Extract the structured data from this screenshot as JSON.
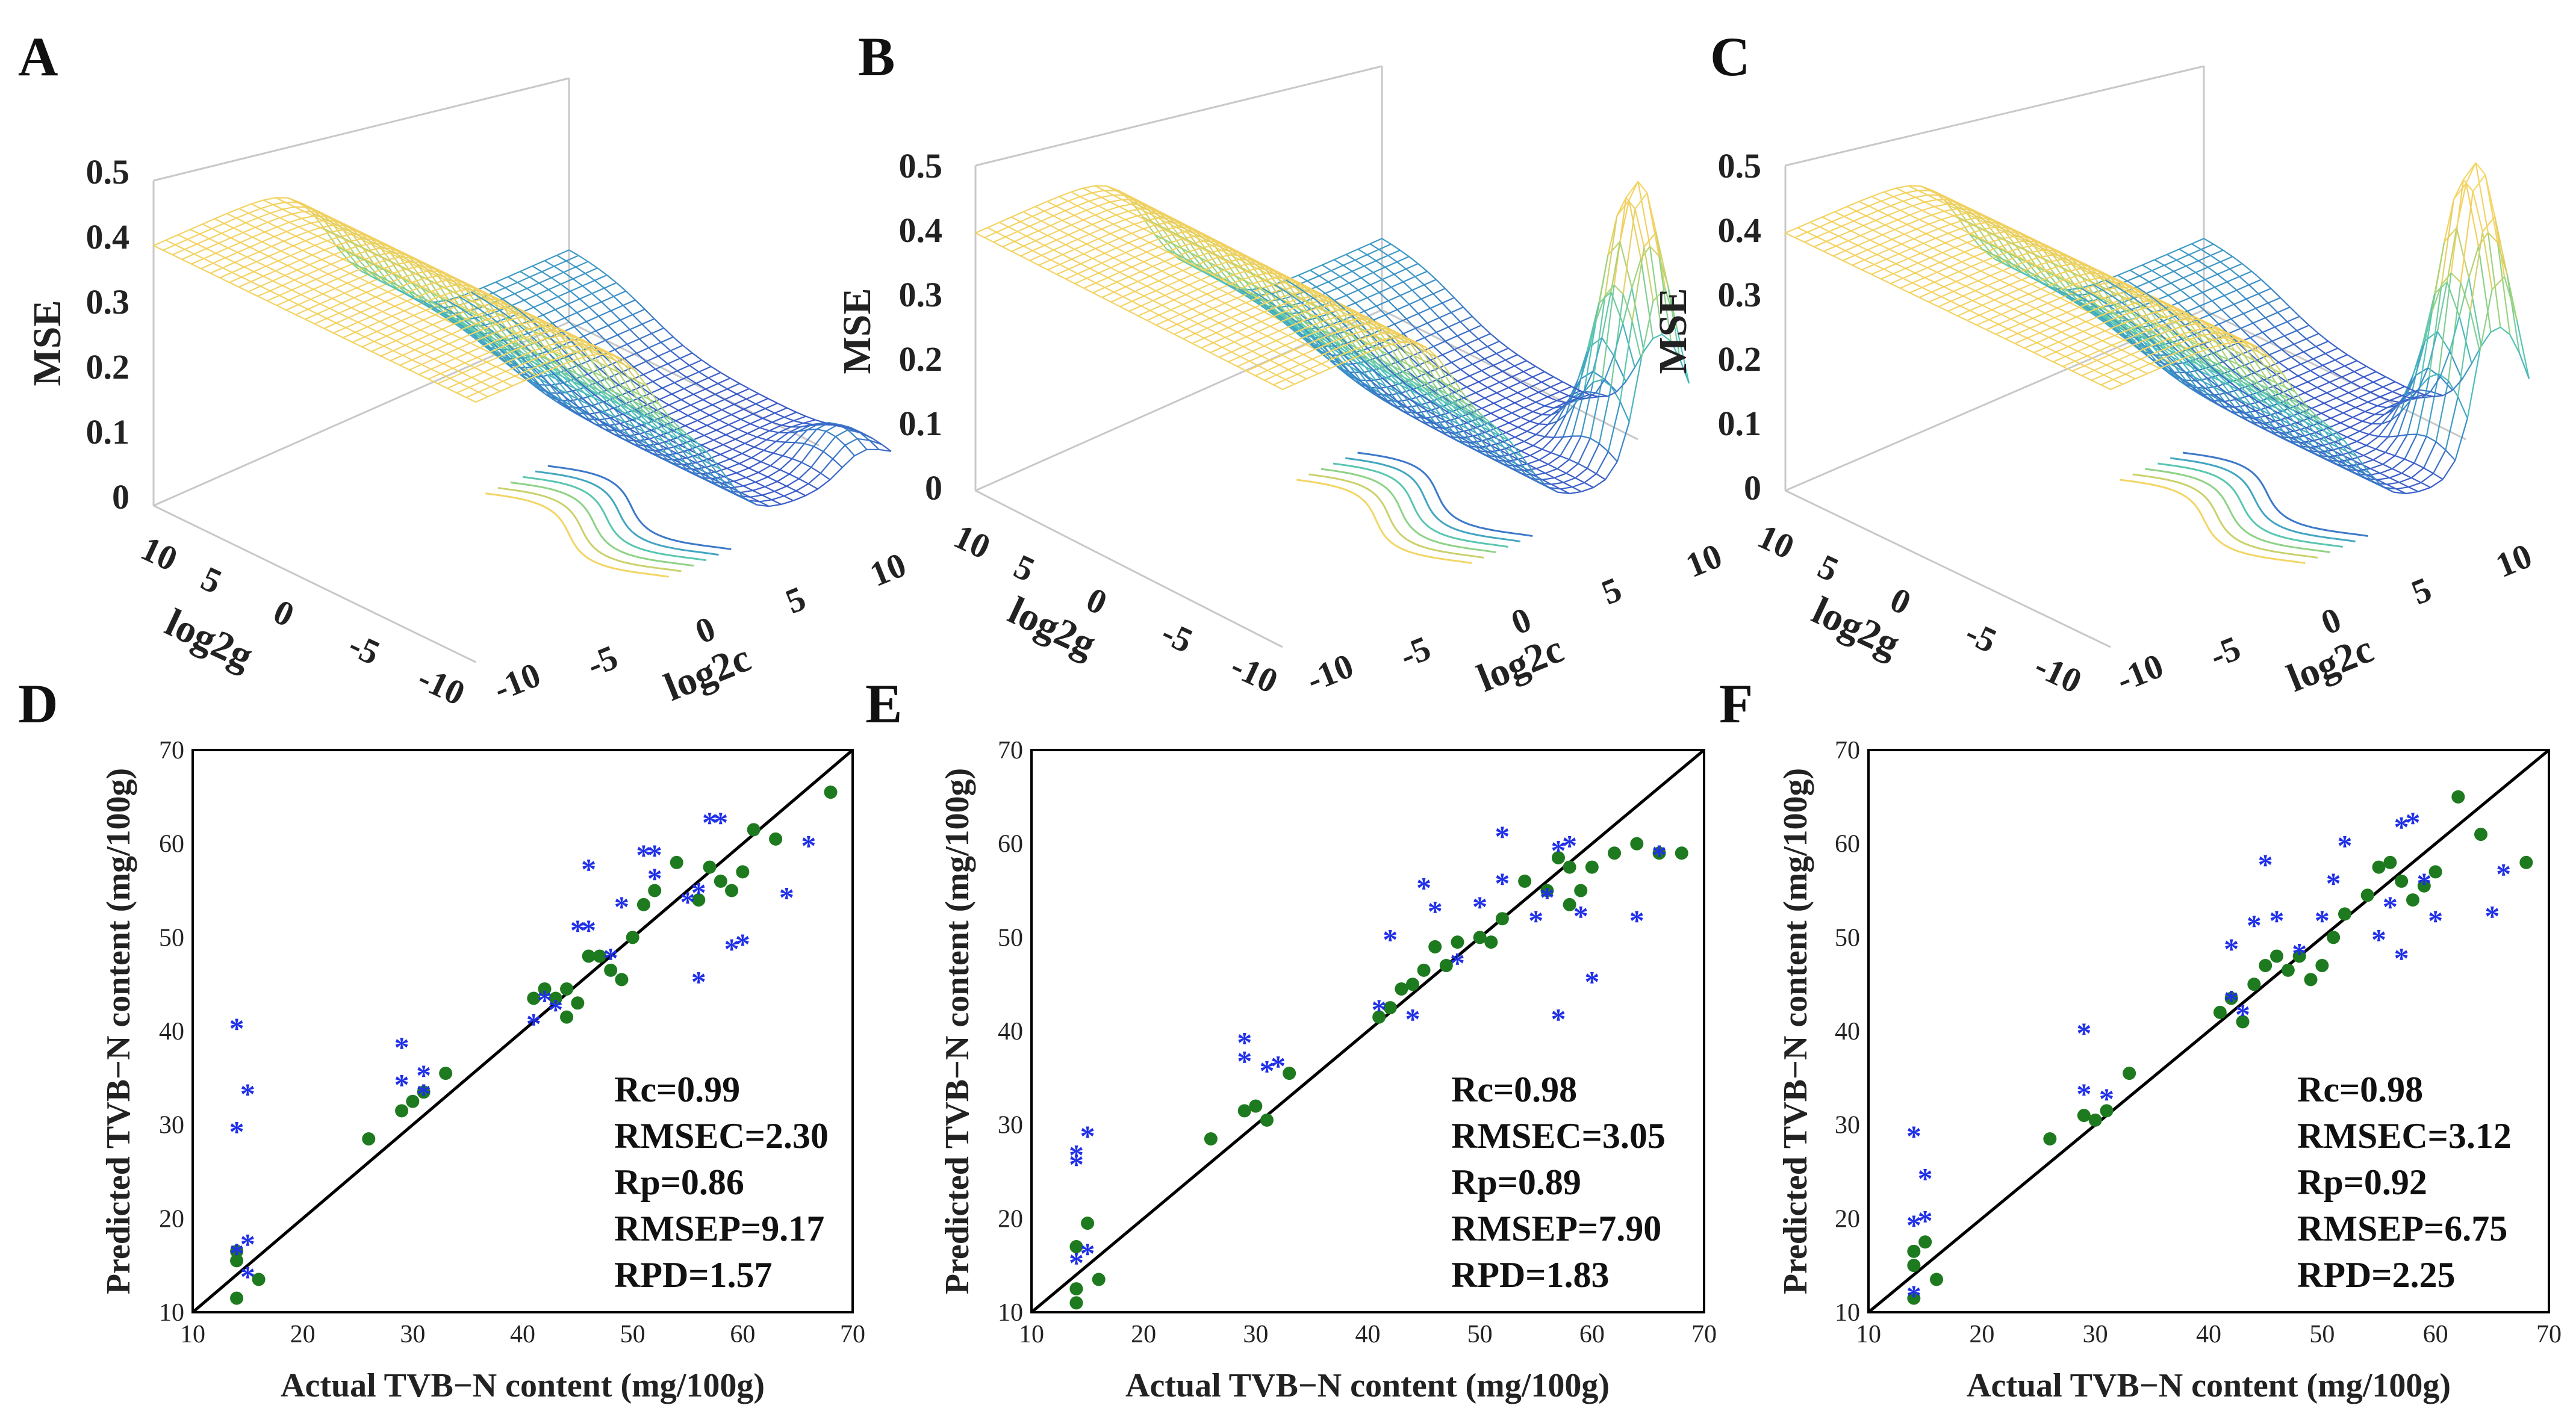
{
  "figure": {
    "panel_labels": [
      "A",
      "B",
      "C",
      "D",
      "E",
      "F"
    ]
  },
  "chart_data": [
    {
      "panel": "A",
      "type": "surface3d",
      "zlabel": "MSE",
      "xlabel": "log2g",
      "ylabel": "log2c",
      "zticks": [
        "0",
        "0.1",
        "0.2",
        "0.3",
        "0.4",
        "0.5"
      ],
      "gticks": [
        "10",
        "5",
        "0",
        "-5",
        "-10"
      ],
      "cticks": [
        "-10",
        "-5",
        "0",
        "5",
        "10"
      ],
      "zlim": [
        0,
        0.5
      ],
      "high_plateau": 0.4,
      "mid_plateau": 0.2,
      "low_floor": 0.03,
      "peak": 0.05
    },
    {
      "panel": "B",
      "type": "surface3d",
      "zlabel": "MSE",
      "xlabel": "log2g",
      "ylabel": "log2c",
      "zticks": [
        "0",
        "0.1",
        "0.2",
        "0.3",
        "0.4",
        "0.5"
      ],
      "gticks": [
        "10",
        "5",
        "0",
        "-5",
        "-10"
      ],
      "cticks": [
        "-10",
        "-5",
        "0",
        "5",
        "10"
      ],
      "zlim": [
        0,
        0.5
      ],
      "high_plateau": 0.4,
      "mid_plateau": 0.2,
      "low_floor": 0.03,
      "peak": 0.42
    },
    {
      "panel": "C",
      "type": "surface3d",
      "zlabel": "MSE",
      "xlabel": "log2g",
      "ylabel": "log2c",
      "zticks": [
        "0",
        "0.1",
        "0.2",
        "0.3",
        "0.4",
        "0.5"
      ],
      "gticks": [
        "10",
        "5",
        "0",
        "-5",
        "-10"
      ],
      "cticks": [
        "-10",
        "-5",
        "0",
        "5",
        "10"
      ],
      "zlim": [
        0,
        0.5
      ],
      "high_plateau": 0.4,
      "mid_plateau": 0.2,
      "low_floor": 0.03,
      "peak": 0.45
    },
    {
      "panel": "D",
      "type": "scatter",
      "xlabel": "Actual TVB−N content (mg/100g)",
      "ylabel": "Predicted TVB−N content (mg/100g)",
      "xlim": [
        10,
        70
      ],
      "ylim": [
        10,
        70
      ],
      "ticks": [
        "10",
        "20",
        "30",
        "40",
        "50",
        "60",
        "70"
      ],
      "stats": [
        "Rc=0.99",
        "RMSEC=2.30",
        "Rp=0.86",
        "RMSEP=9.17",
        "RPD=1.57"
      ],
      "colors": {
        "calibration": "#1e7a1e",
        "prediction": "#1f2fe8",
        "line": "#000000"
      },
      "calibration": [
        [
          14,
          11.5
        ],
        [
          14,
          15.5
        ],
        [
          14,
          16.5
        ],
        [
          16,
          13.5
        ],
        [
          26,
          28.5
        ],
        [
          29,
          31.5
        ],
        [
          30,
          32.5
        ],
        [
          31,
          33.5
        ],
        [
          33,
          35.5
        ],
        [
          41,
          43.5
        ],
        [
          42,
          44.5
        ],
        [
          43,
          43.5
        ],
        [
          44,
          44.5
        ],
        [
          44,
          41.5
        ],
        [
          45,
          43
        ],
        [
          46,
          48
        ],
        [
          47,
          48
        ],
        [
          48,
          46.5
        ],
        [
          49,
          45.5
        ],
        [
          50,
          50
        ],
        [
          51,
          53.5
        ],
        [
          52,
          55
        ],
        [
          54,
          58
        ],
        [
          56,
          54
        ],
        [
          57,
          57.5
        ],
        [
          58,
          56
        ],
        [
          59,
          55
        ],
        [
          60,
          57
        ],
        [
          61,
          61.5
        ],
        [
          63,
          60.5
        ],
        [
          68,
          65.5
        ]
      ],
      "prediction": [
        [
          14,
          40.5
        ],
        [
          14,
          29.5
        ],
        [
          15,
          33.5
        ],
        [
          15,
          17.5
        ],
        [
          14,
          16.5
        ],
        [
          15,
          14
        ],
        [
          29,
          38.5
        ],
        [
          29,
          34.5
        ],
        [
          31,
          35.5
        ],
        [
          31,
          33.5
        ],
        [
          41,
          41
        ],
        [
          42,
          43.5
        ],
        [
          43,
          42.5
        ],
        [
          45,
          51
        ],
        [
          46,
          57.5
        ],
        [
          46,
          51
        ],
        [
          48,
          48
        ],
        [
          49,
          53.5
        ],
        [
          51,
          59
        ],
        [
          52,
          59
        ],
        [
          52,
          56.5
        ],
        [
          55,
          54
        ],
        [
          56,
          55
        ],
        [
          56,
          45.5
        ],
        [
          57,
          62.5
        ],
        [
          58,
          62.5
        ],
        [
          59,
          49
        ],
        [
          60,
          49.5
        ],
        [
          64,
          54.5
        ],
        [
          66,
          60
        ]
      ]
    },
    {
      "panel": "E",
      "type": "scatter",
      "xlabel": "Actual TVB−N content (mg/100g)",
      "ylabel": "Predicted TVB−N content (mg/100g)",
      "xlim": [
        10,
        70
      ],
      "ylim": [
        10,
        70
      ],
      "ticks": [
        "10",
        "20",
        "30",
        "40",
        "50",
        "60",
        "70"
      ],
      "stats": [
        "Rc=0.98",
        "RMSEC=3.05",
        "Rp=0.89",
        "RMSEP=7.90",
        "RPD=1.83"
      ],
      "colors": {
        "calibration": "#1e7a1e",
        "prediction": "#1f2fe8",
        "line": "#000000"
      },
      "calibration": [
        [
          14,
          11
        ],
        [
          14,
          12.5
        ],
        [
          14,
          17
        ],
        [
          15,
          19.5
        ],
        [
          16,
          13.5
        ],
        [
          26,
          28.5
        ],
        [
          29,
          31.5
        ],
        [
          30,
          32
        ],
        [
          31,
          30.5
        ],
        [
          33,
          35.5
        ],
        [
          41,
          41.5
        ],
        [
          42,
          42.5
        ],
        [
          43,
          44.5
        ],
        [
          44,
          45
        ],
        [
          45,
          46.5
        ],
        [
          46,
          49
        ],
        [
          47,
          47
        ],
        [
          48,
          49.5
        ],
        [
          50,
          50
        ],
        [
          51,
          49.5
        ],
        [
          52,
          52
        ],
        [
          54,
          56
        ],
        [
          56,
          55
        ],
        [
          57,
          58.5
        ],
        [
          58,
          53.5
        ],
        [
          58,
          57.5
        ],
        [
          59,
          55
        ],
        [
          60,
          57.5
        ],
        [
          62,
          59
        ],
        [
          64,
          60
        ],
        [
          66,
          59
        ],
        [
          68,
          59
        ]
      ],
      "prediction": [
        [
          14,
          27
        ],
        [
          14,
          26
        ],
        [
          15,
          29
        ],
        [
          15,
          16.5
        ],
        [
          14,
          15.5
        ],
        [
          29,
          39
        ],
        [
          29,
          37
        ],
        [
          31,
          36
        ],
        [
          32,
          36.5
        ],
        [
          41,
          42.5
        ],
        [
          42,
          50
        ],
        [
          44,
          41.5
        ],
        [
          45,
          55.5
        ],
        [
          46,
          53
        ],
        [
          48,
          47.5
        ],
        [
          50,
          53.5
        ],
        [
          52,
          61
        ],
        [
          52,
          56
        ],
        [
          55,
          52
        ],
        [
          56,
          54.5
        ],
        [
          57,
          59.5
        ],
        [
          58,
          60
        ],
        [
          57,
          41.5
        ],
        [
          59,
          52.5
        ],
        [
          60,
          45.5
        ],
        [
          64,
          52
        ],
        [
          66,
          59
        ]
      ]
    },
    {
      "panel": "F",
      "type": "scatter",
      "xlabel": "Actual TVB−N content (mg/100g)",
      "ylabel": "Predicted TVB−N content (mg/100g)",
      "xlim": [
        10,
        70
      ],
      "ylim": [
        10,
        70
      ],
      "ticks": [
        "10",
        "20",
        "30",
        "40",
        "50",
        "60",
        "70"
      ],
      "stats": [
        "Rc=0.98",
        "RMSEC=3.12",
        "Rp=0.92",
        "RMSEP=6.75",
        "RPD=2.25"
      ],
      "colors": {
        "calibration": "#1e7a1e",
        "prediction": "#1f2fe8",
        "line": "#000000"
      },
      "calibration": [
        [
          14,
          11.5
        ],
        [
          14,
          15
        ],
        [
          14,
          16.5
        ],
        [
          15,
          17.5
        ],
        [
          16,
          13.5
        ],
        [
          26,
          28.5
        ],
        [
          29,
          31
        ],
        [
          30,
          30.5
        ],
        [
          31,
          31.5
        ],
        [
          33,
          35.5
        ],
        [
          41,
          42
        ],
        [
          42,
          43.5
        ],
        [
          43,
          41
        ],
        [
          44,
          45
        ],
        [
          45,
          47
        ],
        [
          46,
          48
        ],
        [
          47,
          46.5
        ],
        [
          48,
          48
        ],
        [
          49,
          45.5
        ],
        [
          50,
          47
        ],
        [
          51,
          50
        ],
        [
          52,
          52.5
        ],
        [
          54,
          54.5
        ],
        [
          55,
          57.5
        ],
        [
          56,
          58
        ],
        [
          57,
          56
        ],
        [
          58,
          54
        ],
        [
          59,
          55.5
        ],
        [
          60,
          57
        ],
        [
          62,
          65
        ],
        [
          64,
          61
        ],
        [
          68,
          58
        ]
      ],
      "prediction": [
        [
          14,
          29
        ],
        [
          14,
          19.5
        ],
        [
          15,
          24.5
        ],
        [
          15,
          20
        ],
        [
          14,
          12
        ],
        [
          29,
          40
        ],
        [
          29,
          33.5
        ],
        [
          31,
          33
        ],
        [
          42,
          43.5
        ],
        [
          42,
          49
        ],
        [
          43,
          42
        ],
        [
          44,
          51.5
        ],
        [
          45,
          58
        ],
        [
          46,
          52
        ],
        [
          48,
          48.5
        ],
        [
          50,
          52
        ],
        [
          51,
          56
        ],
        [
          52,
          60
        ],
        [
          55,
          50
        ],
        [
          56,
          53.5
        ],
        [
          57,
          62
        ],
        [
          58,
          62.5
        ],
        [
          57,
          48
        ],
        [
          59,
          56
        ],
        [
          60,
          52
        ],
        [
          65,
          52.5
        ],
        [
          66,
          57
        ]
      ]
    }
  ]
}
